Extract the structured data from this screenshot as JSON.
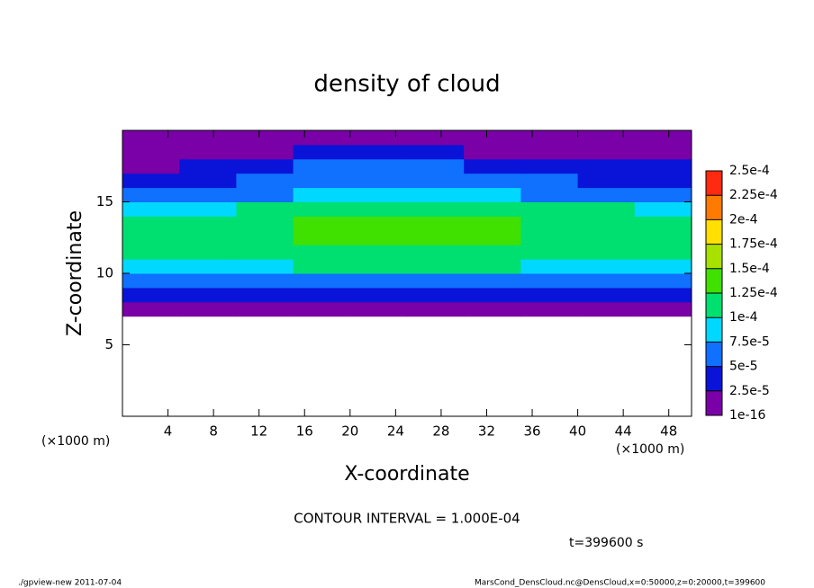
{
  "chart_data": {
    "type": "contourf",
    "title": "density of cloud",
    "xlabel": "X-coordinate",
    "ylabel": "Z-coordinate",
    "x_unit": "(×1000 m)",
    "x_unit_right": "(×1000 m)",
    "contour_note": "CONTOUR INTERVAL = 1.000E-04",
    "time_note": "t=399600 s",
    "footer_left": "./gpview-new  2011-07-04",
    "footer_right": "MarsCond_DensCloud.nc@DensCloud,x=0:50000,z=0:20000,t=399600",
    "xlim": [
      0,
      50
    ],
    "ylim": [
      0,
      20
    ],
    "xticks": [
      4,
      8,
      12,
      16,
      20,
      24,
      28,
      32,
      36,
      40,
      44,
      48
    ],
    "yticks": [
      5,
      10,
      15
    ],
    "x_edges": [
      0,
      5,
      10,
      15,
      20,
      25,
      30,
      35,
      40,
      45,
      50
    ],
    "z_edges": [
      7,
      8,
      9,
      10,
      11,
      12,
      13,
      14,
      15,
      16,
      17,
      18,
      19,
      20
    ],
    "values": [
      [
        1e-05,
        1e-05,
        1e-05,
        1e-05,
        1e-05,
        1e-05,
        1e-05,
        1e-05,
        1e-05,
        1e-05
      ],
      [
        4e-05,
        4e-05,
        4e-05,
        4e-05,
        4e-05,
        4e-05,
        4e-05,
        4e-05,
        4e-05,
        4e-05
      ],
      [
        7e-05,
        7e-05,
        7e-05,
        7e-05,
        7e-05,
        7e-05,
        7e-05,
        7e-05,
        7e-05,
        7e-05
      ],
      [
        9e-05,
        9e-05,
        9e-05,
        0.0001,
        0.0001,
        0.0001,
        0.0001,
        9e-05,
        9e-05,
        9e-05
      ],
      [
        0.00011,
        0.00011,
        0.00011,
        0.00012,
        0.00012,
        0.00012,
        0.00012,
        0.00011,
        0.00011,
        0.00011
      ],
      [
        0.00012,
        0.00012,
        0.00012,
        0.00013,
        0.00013,
        0.00013,
        0.00013,
        0.00012,
        0.00012,
        0.00012
      ],
      [
        0.00011,
        0.00012,
        0.00012,
        0.00013,
        0.00014,
        0.00013,
        0.00013,
        0.00012,
        0.00012,
        0.00011
      ],
      [
        8e-05,
        9e-05,
        0.0001,
        0.00011,
        0.00011,
        0.00011,
        0.00011,
        0.0001,
        0.0001,
        9e-05
      ],
      [
        5e-05,
        6e-05,
        7e-05,
        8e-05,
        9e-05,
        8e-05,
        8e-05,
        7e-05,
        6e-05,
        6e-05
      ],
      [
        3e-05,
        4e-05,
        5e-05,
        7e-05,
        7e-05,
        7e-05,
        6e-05,
        5e-05,
        4e-05,
        4e-05
      ],
      [
        2e-05,
        3e-05,
        4e-05,
        5e-05,
        5e-05,
        5e-05,
        4e-05,
        3e-05,
        3e-05,
        3e-05
      ],
      [
        1e-05,
        2e-05,
        2e-05,
        3e-05,
        3e-05,
        3e-05,
        2e-05,
        2e-05,
        2e-05,
        2e-05
      ],
      [
        1e-05,
        1e-05,
        1e-05,
        2e-05,
        2e-05,
        2e-05,
        1e-05,
        1e-05,
        1e-05,
        1e-05
      ]
    ],
    "levels": [
      {
        "value": 1e-16,
        "label": "1e-16"
      },
      {
        "value": 2.5e-05,
        "label": "2.5e-5"
      },
      {
        "value": 5e-05,
        "label": "5e-5"
      },
      {
        "value": 7.5e-05,
        "label": "7.5e-5"
      },
      {
        "value": 0.0001,
        "label": "1e-4"
      },
      {
        "value": 0.000125,
        "label": "1.25e-4"
      },
      {
        "value": 0.00015,
        "label": "1.5e-4"
      },
      {
        "value": 0.000175,
        "label": "1.75e-4"
      },
      {
        "value": 0.0002,
        "label": "2e-4"
      },
      {
        "value": 0.000225,
        "label": "2.25e-4"
      },
      {
        "value": 0.00025,
        "label": "2.5e-4"
      }
    ],
    "colors": [
      "#7a00a8",
      "#0a14d8",
      "#1070ff",
      "#00d8ff",
      "#00e070",
      "#40e000",
      "#a8e000",
      "#ffe000",
      "#ff7a00",
      "#ff2a10"
    ]
  }
}
